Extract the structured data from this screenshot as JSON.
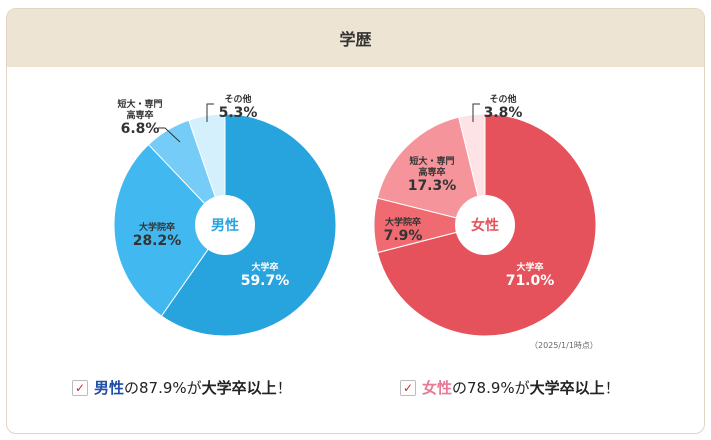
{
  "title": "学歴",
  "note": "（2025/1/1時点）",
  "chart_data": [
    {
      "type": "pie",
      "center_label": "男性",
      "center_color": "#27a3dd",
      "categories": [
        "大学卒",
        "大学院卒",
        "短大・専門高専卒",
        "その他"
      ],
      "values": [
        59.7,
        28.2,
        6.8,
        5.3
      ],
      "labels": [
        "59.7%",
        "28.2%",
        "6.8%",
        "5.3%"
      ],
      "colors": [
        "#27a3dd",
        "#41b9f0",
        "#75cdf7",
        "#d4f0fc"
      ]
    },
    {
      "type": "pie",
      "center_label": "女性",
      "center_color": "#e5525c",
      "categories": [
        "大学卒",
        "大学院卒",
        "短大・専門高専卒",
        "その他"
      ],
      "values": [
        71.0,
        7.9,
        17.3,
        3.8
      ],
      "labels": [
        "71.0%",
        "7.9%",
        "17.3%",
        "3.8%"
      ],
      "colors": [
        "#e5525c",
        "#f06a72",
        "#f5959b",
        "#fde3e5"
      ]
    }
  ],
  "conclusions": [
    {
      "check": "✓",
      "sex": "男性",
      "sex_color": "#1f4fa6",
      "mid": "の87.9%が",
      "bold": "大学卒以上",
      "end": "！"
    },
    {
      "check": "✓",
      "sex": "女性",
      "sex_color": "#e77a95",
      "mid": "の78.9%が",
      "bold": "大学卒以上",
      "end": "！"
    }
  ]
}
